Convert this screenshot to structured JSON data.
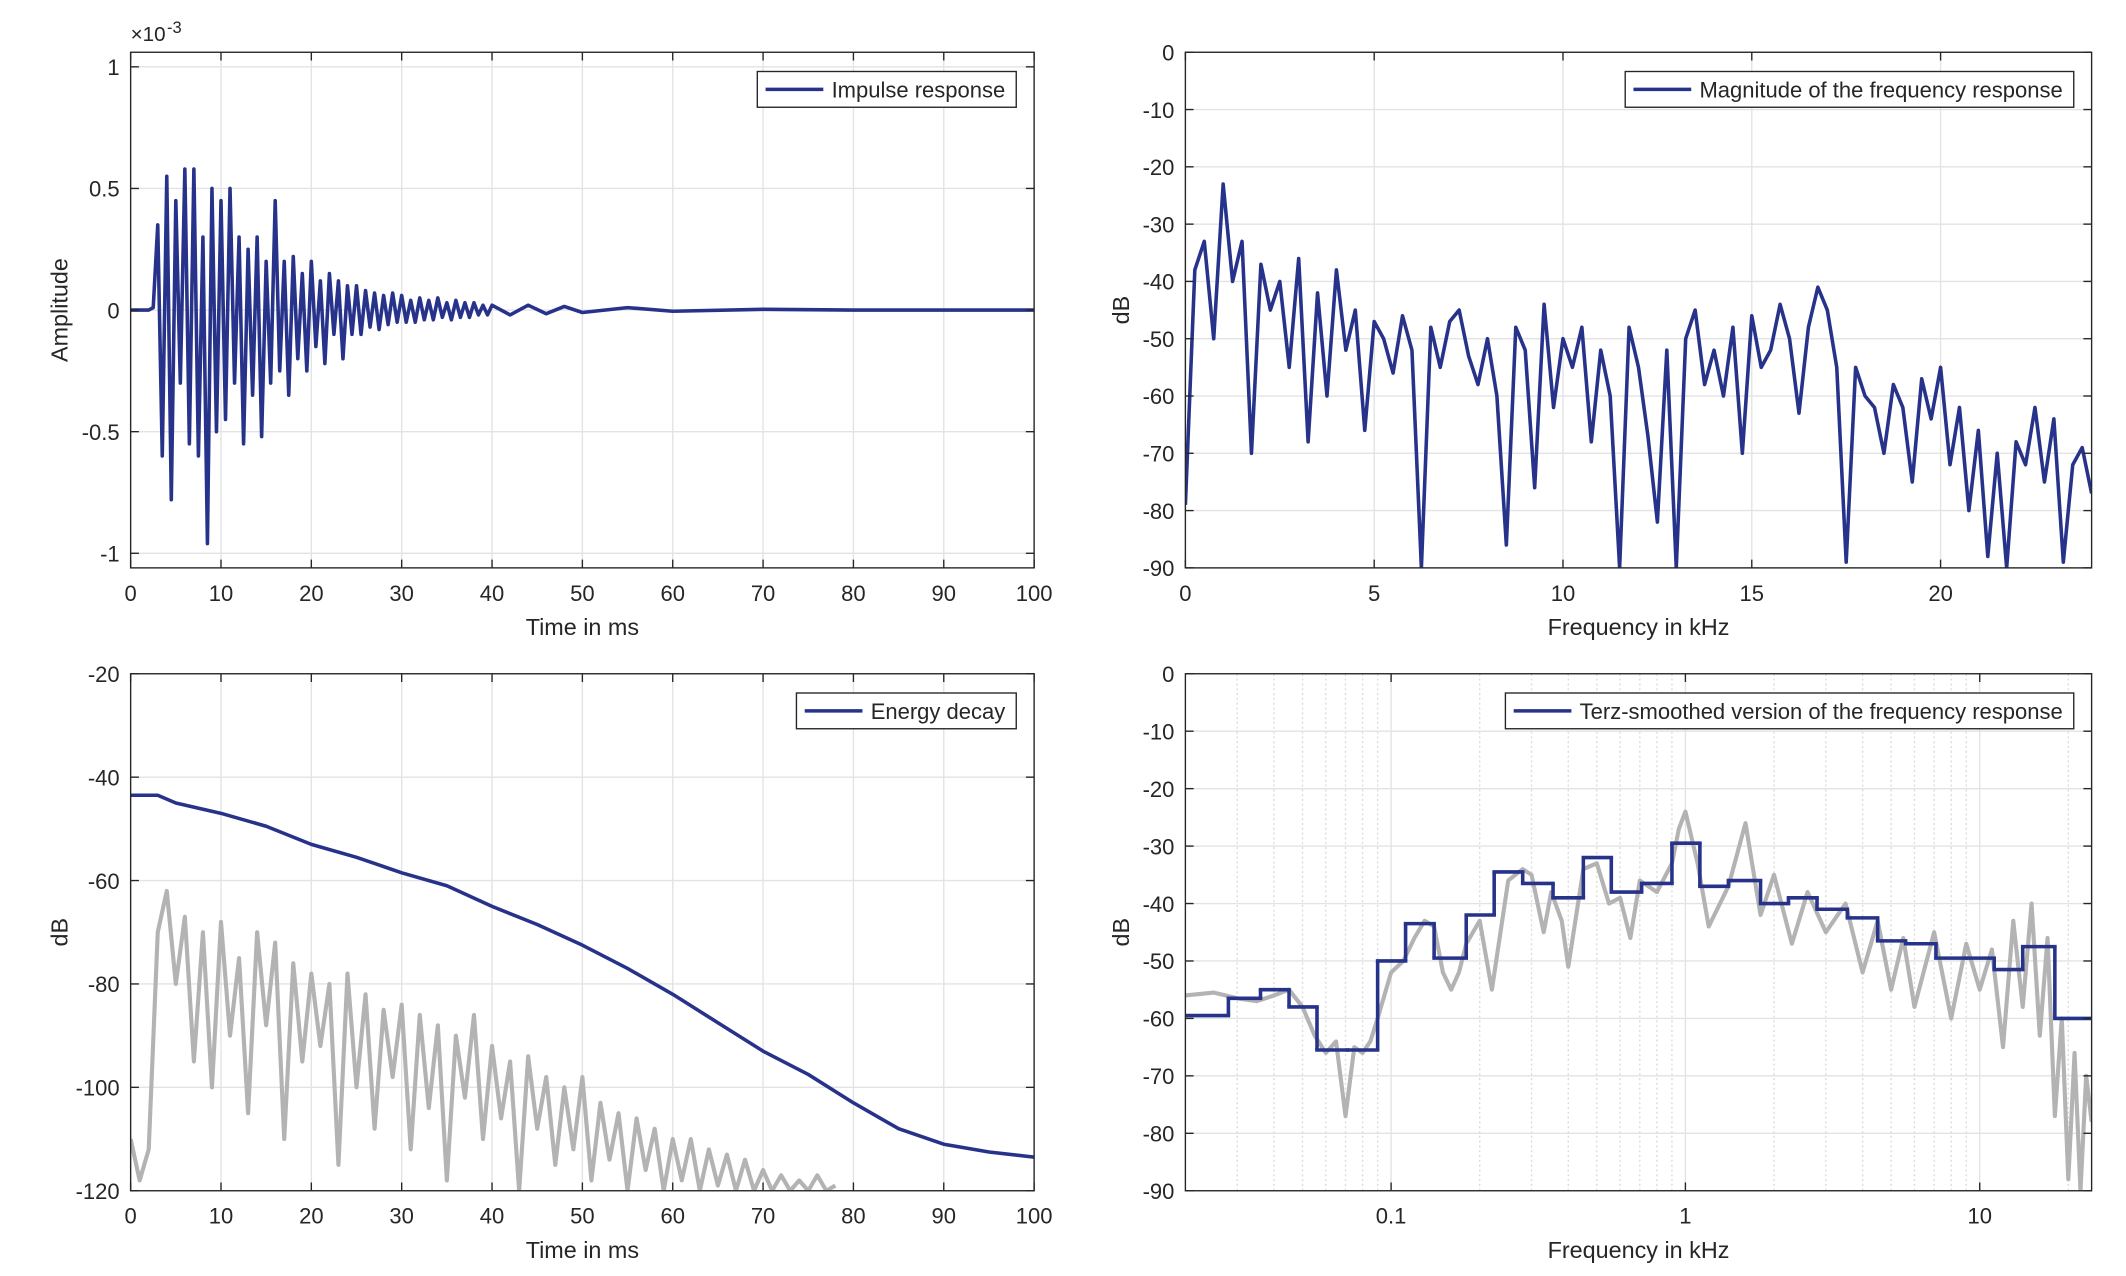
{
  "chart_data": [
    {
      "type": "line",
      "xlabel": "Time in ms",
      "ylabel": "Amplitude",
      "y_multiplier": "×10",
      "y_multiplier_exponent": "-3",
      "xlim": [
        0,
        100
      ],
      "ylim": [
        -1.06,
        1.06
      ],
      "xticks": [
        0,
        10,
        20,
        30,
        40,
        50,
        60,
        70,
        80,
        90,
        100
      ],
      "yticks": [
        -1,
        -0.5,
        0,
        0.5,
        1
      ],
      "grid": true,
      "legend": "upper right",
      "series": [
        {
          "name": "Impulse response",
          "color": "#27338a",
          "x": [
            0,
            0.5,
            1,
            1.5,
            2,
            2.5,
            3,
            3.5,
            4,
            4.5,
            5,
            5.5,
            6,
            6.5,
            7,
            7.5,
            8,
            8.5,
            9,
            9.5,
            10,
            10.5,
            11,
            11.5,
            12,
            12.5,
            13,
            13.5,
            14,
            14.5,
            15,
            15.5,
            16,
            16.5,
            17,
            17.5,
            18,
            18.5,
            19,
            19.5,
            20,
            20.5,
            21,
            21.5,
            22,
            22.5,
            23,
            23.5,
            24,
            24.5,
            25,
            25.5,
            26,
            26.5,
            27,
            27.5,
            28,
            28.5,
            29,
            29.5,
            30,
            30.5,
            31,
            31.5,
            32,
            32.5,
            33,
            33.5,
            34,
            34.5,
            35,
            35.5,
            36,
            36.5,
            37,
            37.5,
            38,
            38.5,
            39,
            39.5,
            40,
            42,
            44,
            46,
            48,
            50,
            55,
            60,
            70,
            80,
            90,
            100
          ],
          "values": [
            0,
            0,
            0,
            0,
            0,
            0.01,
            0.35,
            -0.6,
            0.55,
            -0.78,
            0.45,
            -0.3,
            0.58,
            -0.55,
            0.58,
            -0.6,
            0.3,
            -0.96,
            0.5,
            -0.5,
            0.45,
            -0.45,
            0.5,
            -0.3,
            0.3,
            -0.55,
            0.25,
            -0.35,
            0.3,
            -0.52,
            0.2,
            -0.3,
            0.45,
            -0.25,
            0.2,
            -0.35,
            0.22,
            -0.2,
            0.15,
            -0.25,
            0.2,
            -0.15,
            0.12,
            -0.22,
            0.15,
            -0.1,
            0.12,
            -0.2,
            0.1,
            -0.1,
            0.1,
            -0.1,
            0.08,
            -0.07,
            0.07,
            -0.08,
            0.06,
            -0.06,
            0.07,
            -0.05,
            0.06,
            -0.05,
            0.04,
            -0.05,
            0.05,
            -0.04,
            0.04,
            -0.04,
            0.05,
            -0.03,
            0.03,
            -0.04,
            0.04,
            -0.03,
            0.03,
            -0.03,
            0.03,
            -0.02,
            0.02,
            -0.02,
            0.02,
            -0.02,
            0.02,
            -0.015,
            0.015,
            -0.01,
            0.01,
            -0.005,
            0.003,
            0,
            0,
            0
          ]
        }
      ]
    },
    {
      "type": "line",
      "xlabel": "Frequency in kHz",
      "ylabel": "dB",
      "xlim": [
        0,
        24
      ],
      "ylim": [
        -90,
        0
      ],
      "xticks": [
        0,
        5,
        10,
        15,
        20
      ],
      "yticks": [
        -90,
        -80,
        -70,
        -60,
        -50,
        -40,
        -30,
        -20,
        -10,
        0
      ],
      "grid": true,
      "legend": "upper right",
      "series": [
        {
          "name": "Magnitude of the frequency response",
          "color": "#27338a",
          "x": [
            0,
            0.25,
            0.5,
            0.75,
            1,
            1.25,
            1.5,
            1.75,
            2,
            2.25,
            2.5,
            2.75,
            3,
            3.25,
            3.5,
            3.75,
            4,
            4.25,
            4.5,
            4.75,
            5,
            5.25,
            5.5,
            5.75,
            6,
            6.25,
            6.5,
            6.75,
            7,
            7.25,
            7.5,
            7.75,
            8,
            8.25,
            8.5,
            8.75,
            9,
            9.25,
            9.5,
            9.75,
            10,
            10.25,
            10.5,
            10.75,
            11,
            11.25,
            11.5,
            11.75,
            12,
            12.25,
            12.5,
            12.75,
            13,
            13.25,
            13.5,
            13.75,
            14,
            14.25,
            14.5,
            14.75,
            15,
            15.25,
            15.5,
            15.75,
            16,
            16.25,
            16.5,
            16.75,
            17,
            17.25,
            17.5,
            17.75,
            18,
            18.25,
            18.5,
            18.75,
            19,
            19.25,
            19.5,
            19.75,
            20,
            20.25,
            20.5,
            20.75,
            21,
            21.25,
            21.5,
            21.75,
            22,
            22.25,
            22.5,
            22.75,
            23,
            23.25,
            23.5,
            23.75,
            24
          ],
          "values": [
            -79,
            -38,
            -33,
            -50,
            -23,
            -40,
            -33,
            -70,
            -37,
            -45,
            -40,
            -55,
            -36,
            -68,
            -42,
            -60,
            -38,
            -52,
            -45,
            -66,
            -47,
            -50,
            -56,
            -46,
            -52,
            -90,
            -48,
            -55,
            -47,
            -45,
            -53,
            -58,
            -50,
            -60,
            -86,
            -48,
            -52,
            -76,
            -44,
            -62,
            -50,
            -55,
            -48,
            -68,
            -52,
            -60,
            -90,
            -48,
            -55,
            -67,
            -82,
            -52,
            -90,
            -50,
            -45,
            -58,
            -52,
            -60,
            -48,
            -70,
            -46,
            -55,
            -52,
            -44,
            -50,
            -63,
            -48,
            -41,
            -45,
            -55,
            -89,
            -55,
            -60,
            -62,
            -70,
            -58,
            -62,
            -75,
            -57,
            -64,
            -55,
            -72,
            -62,
            -80,
            -66,
            -88,
            -70,
            -90,
            -68,
            -72,
            -62,
            -75,
            -64,
            -89,
            -72,
            -69,
            -77
          ]
        }
      ]
    },
    {
      "type": "line",
      "xlabel": "Time in ms",
      "ylabel": "dB",
      "xlim": [
        0,
        100
      ],
      "ylim": [
        -120,
        -20
      ],
      "xticks": [
        0,
        10,
        20,
        30,
        40,
        50,
        60,
        70,
        80,
        90,
        100
      ],
      "yticks": [
        -120,
        -100,
        -80,
        -60,
        -40,
        -20
      ],
      "grid": true,
      "legend": "upper right",
      "series": [
        {
          "color": "#b3b3b3",
          "x": [
            0,
            1,
            2,
            3,
            4,
            5,
            6,
            7,
            8,
            9,
            10,
            11,
            12,
            13,
            14,
            15,
            16,
            17,
            18,
            19,
            20,
            21,
            22,
            23,
            24,
            25,
            26,
            27,
            28,
            29,
            30,
            31,
            32,
            33,
            34,
            35,
            36,
            37,
            38,
            39,
            40,
            41,
            42,
            43,
            44,
            45,
            46,
            47,
            48,
            49,
            50,
            51,
            52,
            53,
            54,
            55,
            56,
            57,
            58,
            59,
            60,
            61,
            62,
            63,
            64,
            65,
            66,
            67,
            68,
            69,
            70,
            71,
            72,
            73,
            74,
            75,
            76,
            77,
            78
          ],
          "values": [
            -110,
            -118,
            -112,
            -70,
            -62,
            -80,
            -67,
            -95,
            -70,
            -100,
            -68,
            -90,
            -75,
            -105,
            -70,
            -88,
            -72,
            -110,
            -76,
            -95,
            -78,
            -92,
            -80,
            -115,
            -78,
            -100,
            -82,
            -108,
            -85,
            -98,
            -84,
            -112,
            -86,
            -104,
            -88,
            -118,
            -90,
            -102,
            -86,
            -110,
            -92,
            -106,
            -95,
            -120,
            -94,
            -108,
            -98,
            -115,
            -100,
            -112,
            -98,
            -118,
            -103,
            -114,
            -105,
            -120,
            -106,
            -116,
            -108,
            -120,
            -110,
            -118,
            -110,
            -120,
            -112,
            -119,
            -113,
            -120,
            -114,
            -120,
            -116,
            -120,
            -117,
            -120,
            -118,
            -120,
            -117,
            -120,
            -119
          ]
        },
        {
          "name": "Energy decay",
          "color": "#27338a",
          "x": [
            0,
            3,
            5,
            10,
            15,
            20,
            25,
            30,
            35,
            40,
            45,
            50,
            55,
            60,
            65,
            70,
            75,
            80,
            85,
            90,
            95,
            100
          ],
          "values": [
            -43.5,
            -43.5,
            -45,
            -47,
            -49.5,
            -53,
            -55.5,
            -58.5,
            -61,
            -65,
            -68.5,
            -72.5,
            -77,
            -82,
            -87.5,
            -93,
            -97.5,
            -103,
            -108,
            -111,
            -112.5,
            -113.5
          ]
        }
      ]
    },
    {
      "type": "line",
      "xlabel": "Frequency in kHz",
      "ylabel": "dB",
      "xscale": "log",
      "xlim": [
        0.02,
        24
      ],
      "ylim": [
        -90,
        0
      ],
      "xticks": [
        0.1,
        1,
        10
      ],
      "minor_xticks": [
        0.03,
        0.04,
        0.05,
        0.06,
        0.07,
        0.08,
        0.09,
        0.2,
        0.3,
        0.4,
        0.5,
        0.6,
        0.7,
        0.8,
        0.9,
        2,
        3,
        4,
        5,
        6,
        7,
        8,
        9,
        20
      ],
      "yticks": [
        -90,
        -80,
        -70,
        -60,
        -50,
        -40,
        -30,
        -20,
        -10,
        0
      ],
      "grid": true,
      "legend": "upper right",
      "series": [
        {
          "color": "#b3b3b3",
          "x": [
            0.02,
            0.025,
            0.03,
            0.035,
            0.04,
            0.045,
            0.05,
            0.055,
            0.06,
            0.065,
            0.07,
            0.075,
            0.08,
            0.085,
            0.09,
            0.1,
            0.11,
            0.12,
            0.13,
            0.14,
            0.15,
            0.16,
            0.17,
            0.18,
            0.2,
            0.22,
            0.25,
            0.28,
            0.3,
            0.33,
            0.35,
            0.38,
            0.4,
            0.45,
            0.5,
            0.55,
            0.6,
            0.65,
            0.7,
            0.8,
            0.9,
            0.95,
            1,
            1.1,
            1.2,
            1.4,
            1.6,
            1.8,
            2,
            2.3,
            2.6,
            3,
            3.5,
            4,
            4.5,
            5,
            5.5,
            6,
            7,
            8,
            9,
            10,
            11,
            12,
            13,
            14,
            15,
            16,
            17,
            18,
            19,
            20,
            21,
            22,
            23,
            24
          ],
          "values": [
            -56,
            -55.5,
            -56.5,
            -57,
            -56,
            -55,
            -58,
            -63,
            -66,
            -64,
            -77,
            -65,
            -66,
            -64,
            -60,
            -52,
            -50,
            -46,
            -43,
            -44,
            -52,
            -55,
            -52,
            -47,
            -43,
            -55,
            -36,
            -34,
            -35,
            -45,
            -38,
            -43,
            -51,
            -34,
            -33,
            -40,
            -39,
            -46,
            -36,
            -38,
            -33,
            -27,
            -24,
            -33,
            -44,
            -37,
            -26,
            -42,
            -35,
            -47,
            -38,
            -45,
            -40,
            -52,
            -43,
            -55,
            -46,
            -58,
            -45,
            -60,
            -47,
            -55,
            -48,
            -65,
            -43,
            -58,
            -40,
            -63,
            -46,
            -77,
            -60,
            -88,
            -66,
            -90,
            -70,
            -78
          ]
        },
        {
          "name": "Terz-smoothed version of the frequency response",
          "color": "#27338a",
          "drawstyle": "steps-post",
          "x": [
            0.02,
            0.028,
            0.036,
            0.045,
            0.056,
            0.071,
            0.09,
            0.112,
            0.14,
            0.18,
            0.224,
            0.28,
            0.355,
            0.45,
            0.56,
            0.71,
            0.9,
            1.12,
            1.4,
            1.8,
            2.24,
            2.8,
            3.55,
            4.5,
            5.6,
            7.1,
            9,
            11.2,
            14,
            18
          ],
          "values": [
            -59.5,
            -56.5,
            -55,
            -58,
            -65.5,
            -65.5,
            -50,
            -43.5,
            -49.5,
            -42,
            -34.5,
            -36.5,
            -39,
            -32,
            -38,
            -36.5,
            -29.5,
            -37,
            -36,
            -40,
            -39,
            -41,
            -42.5,
            -46.5,
            -47,
            -49.5,
            -49.5,
            -51.5,
            -47.5,
            -60
          ]
        }
      ]
    }
  ]
}
